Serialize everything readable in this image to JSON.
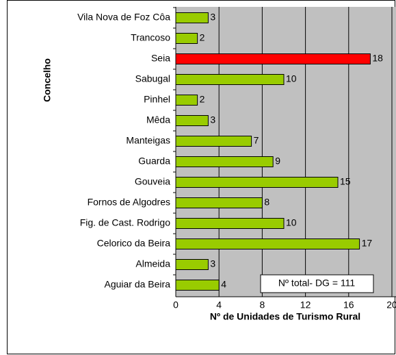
{
  "chart_data": {
    "type": "bar",
    "orientation": "horizontal",
    "xlabel": "Nº de Unidades de Turismo Rural",
    "ylabel": "Concelho",
    "categories": [
      "Vila Nova de Foz Côa",
      "Trancoso",
      "Seia",
      "Sabugal",
      "Pinhel",
      "Mêda",
      "Manteigas",
      "Guarda",
      "Gouveia",
      "Fornos de Algodres",
      "Fig. de Cast. Rodrigo",
      "Celorico da Beira",
      "Almeida",
      "Aguiar da Beira"
    ],
    "values": [
      3,
      2,
      18,
      10,
      2,
      3,
      7,
      9,
      15,
      8,
      10,
      17,
      3,
      4
    ],
    "colors": [
      "#99cc00",
      "#99cc00",
      "#ff0000",
      "#99cc00",
      "#99cc00",
      "#99cc00",
      "#99cc00",
      "#99cc00",
      "#99cc00",
      "#99cc00",
      "#99cc00",
      "#99cc00",
      "#99cc00",
      "#99cc00"
    ],
    "xlim": [
      0,
      20
    ],
    "xticks": [
      0,
      4,
      8,
      12,
      16,
      20
    ],
    "grid": true,
    "annotation": "Nº total- DG = 111"
  }
}
